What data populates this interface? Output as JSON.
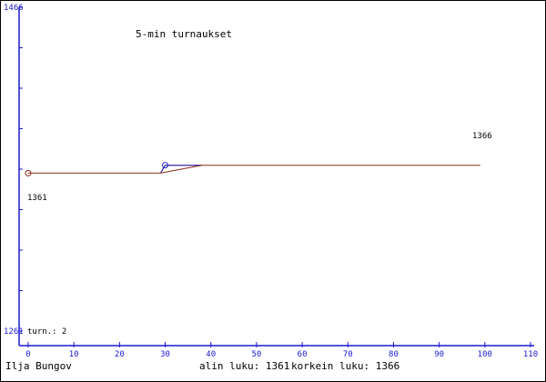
{
  "chart_data": {
    "type": "line",
    "title": "5-min turnaukset",
    "y_axis": {
      "min_label": "1261",
      "max_label": "1466",
      "ylim": [
        1261,
        1466
      ],
      "tick_count": 9
    },
    "x_axis": {
      "ticks": [
        0,
        10,
        20,
        30,
        40,
        50,
        60,
        70,
        80,
        90,
        100,
        110
      ],
      "xlim": [
        0,
        110
      ]
    },
    "turn_label": "turn.: 2",
    "start_value_label": "1361",
    "end_value_label": "1366",
    "series": [
      {
        "color": "#8b2c17",
        "points": [
          [
            0,
            1361
          ],
          [
            29,
            1361
          ],
          [
            30,
            1366
          ],
          [
            99,
            1366
          ]
        ]
      },
      {
        "color": "#2727c8",
        "points": [
          [
            29,
            1361
          ],
          [
            30,
            1366
          ],
          [
            38,
            1366
          ]
        ]
      },
      {
        "color": "#8b2c17",
        "points": [
          [
            29,
            1361
          ],
          [
            38,
            1366
          ]
        ]
      }
    ],
    "markers": [
      {
        "x": 0,
        "y": 1361,
        "color": "#8b2c17"
      },
      {
        "x": 30,
        "y": 1366,
        "color": "#2727c8"
      }
    ]
  },
  "footer": {
    "player": "Ilja Bungov",
    "lowest": "alin luku: 1361",
    "highest": "korkein luku: 1366"
  },
  "colors": {
    "axis": "#1a1ad0",
    "text": "#000000"
  }
}
